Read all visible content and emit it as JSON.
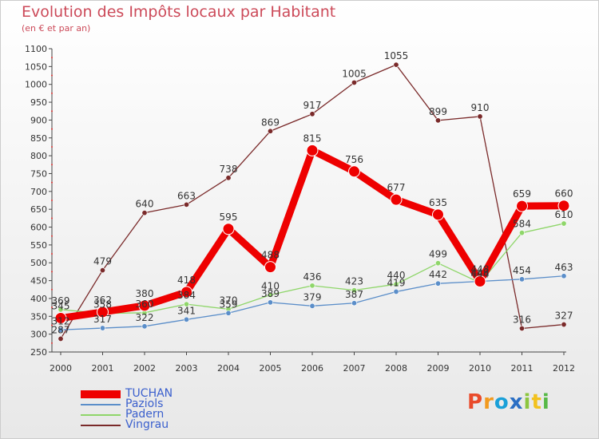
{
  "title": "Evolution des Impôts locaux par Habitant",
  "subtitle": "(en € et par an)",
  "logo": {
    "text": "Proxiti",
    "letters": [
      "P",
      "r",
      "o",
      "x",
      "i",
      "t",
      "i"
    ]
  },
  "chart_data": {
    "type": "line",
    "x": [
      "2000",
      "2001",
      "2002",
      "2003",
      "2004",
      "2005",
      "2006",
      "2007",
      "2008",
      "2009",
      "2010",
      "2011",
      "2012"
    ],
    "ylim": [
      250,
      1100
    ],
    "yticks": [
      250,
      300,
      350,
      400,
      450,
      500,
      550,
      600,
      650,
      700,
      750,
      800,
      850,
      900,
      950,
      1000,
      1050,
      1100
    ],
    "grid": false,
    "legend_position": "bottom-left",
    "series": [
      {
        "name": "TUCHAN",
        "color": "#ee0000",
        "values": [
          345,
          362,
          380,
          418,
          595,
          488,
          815,
          756,
          677,
          635,
          448,
          659,
          660
        ]
      },
      {
        "name": "Paziols",
        "color": "#5b8ec9",
        "values": [
          312,
          317,
          322,
          341,
          359,
          389,
          379,
          387,
          419,
          442,
          448,
          454,
          463
        ]
      },
      {
        "name": "Padern",
        "color": "#8fd66a",
        "values": [
          369,
          358,
          360,
          384,
          370,
          410,
          436,
          423,
          440,
          499,
          444,
          584,
          610
        ]
      },
      {
        "name": "Vingrau",
        "color": "#7a2a2a",
        "values": [
          287,
          479,
          640,
          663,
          738,
          869,
          917,
          1005,
          1055,
          899,
          910,
          316,
          327
        ]
      }
    ]
  }
}
